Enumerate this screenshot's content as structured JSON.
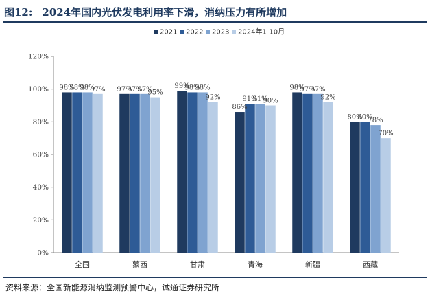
{
  "figure": {
    "label": "图12:",
    "title": "2024年国内光伏发电利用率下滑，消纳压力有所增加"
  },
  "source": "资料来源：全国新能源消纳监测预警中心，诚通证券研究所",
  "chart_data": {
    "type": "bar",
    "categories": [
      "全国",
      "蒙西",
      "甘肃",
      "青海",
      "新疆",
      "西藏"
    ],
    "series": [
      {
        "name": "2021",
        "color": "#1f3a5f",
        "values": [
          98,
          97,
          99,
          86,
          98,
          80
        ]
      },
      {
        "name": "2022",
        "color": "#2e5b96",
        "values": [
          98,
          97,
          98,
          91,
          97,
          80
        ]
      },
      {
        "name": "2023",
        "color": "#7fa3d0",
        "values": [
          98,
          97,
          98,
          91,
          97,
          78
        ]
      },
      {
        "name": "2024年1-10月",
        "color": "#b8cde6",
        "values": [
          97,
          95,
          92,
          90,
          92,
          70
        ]
      }
    ],
    "yticks": [
      "0%",
      "20%",
      "40%",
      "60%",
      "80%",
      "100%",
      "120%"
    ],
    "ylim": [
      0,
      120
    ],
    "value_suffix": "%",
    "grid": false,
    "legend_position": "top"
  }
}
